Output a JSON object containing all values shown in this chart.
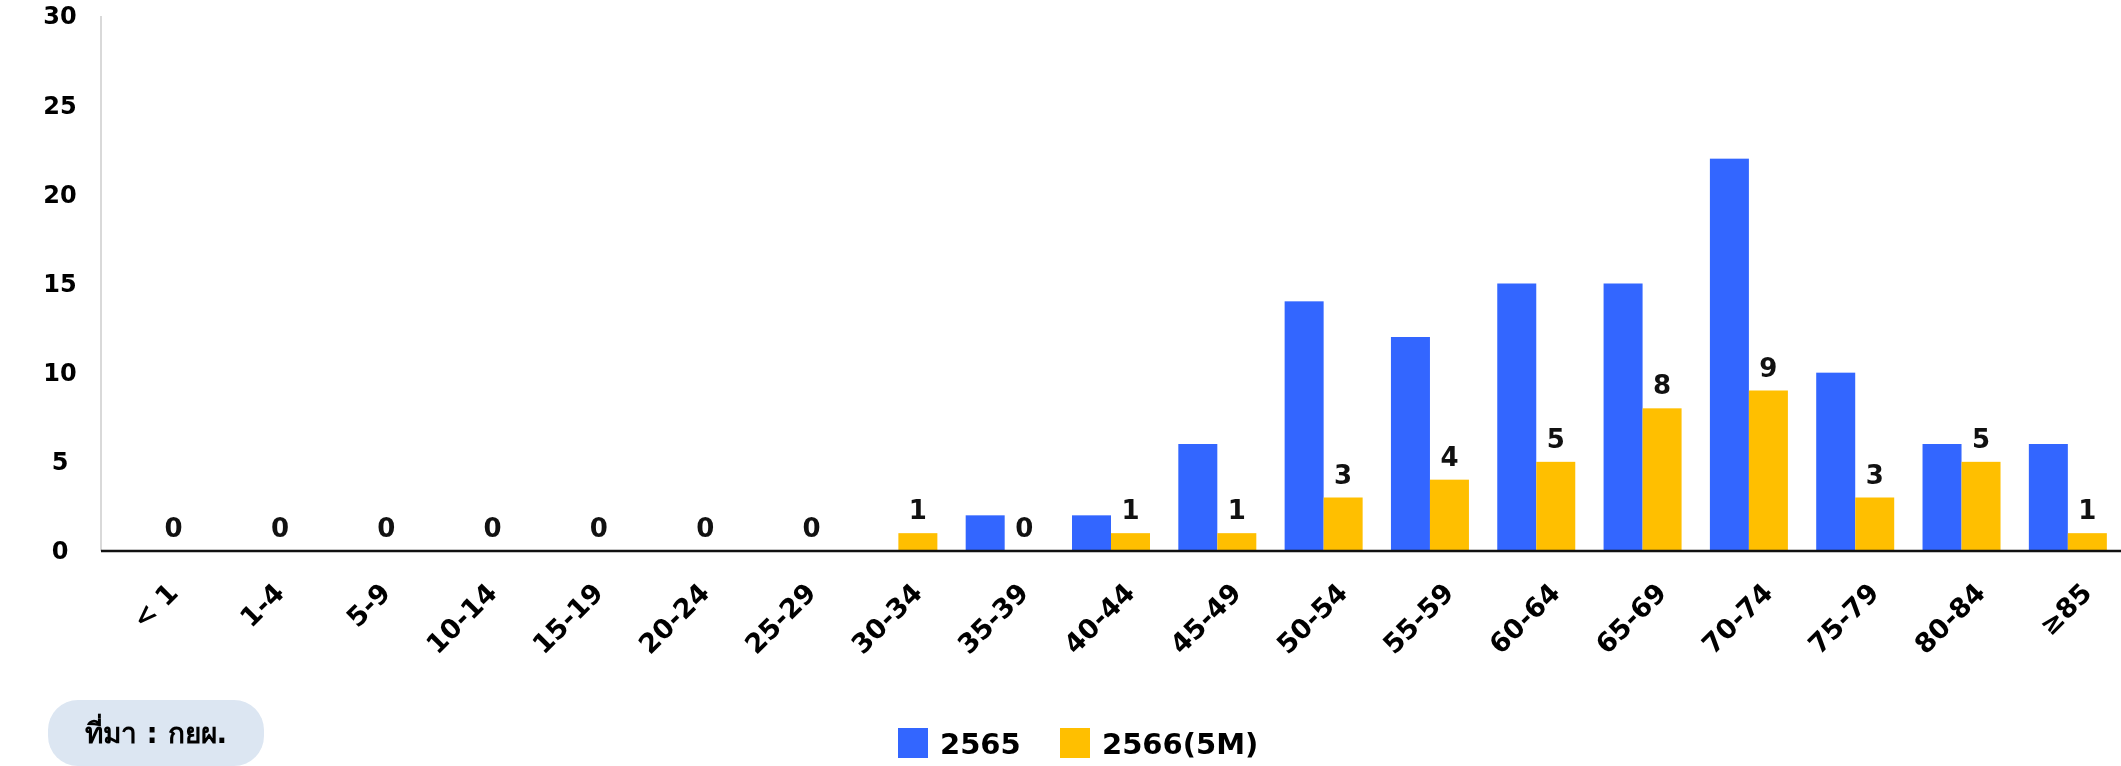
{
  "chart_data": {
    "type": "bar",
    "categories": [
      "< 1",
      "1-4",
      "5-9",
      "10-14",
      "15-19",
      "20-24",
      "25-29",
      "30-34",
      "35-39",
      "40-44",
      "45-49",
      "50-54",
      "55-59",
      "60-64",
      "65-69",
      "70-74",
      "75-79",
      "80-84",
      "≥85"
    ],
    "series": [
      {
        "name": "2565",
        "color": "#3366ff",
        "values": [
          0,
          0,
          0,
          0,
          0,
          0,
          0,
          0,
          2,
          2,
          6,
          14,
          12,
          15,
          15,
          22,
          10,
          6,
          6
        ]
      },
      {
        "name": "2566(5M)",
        "color": "#ffbf00",
        "values": [
          0,
          0,
          0,
          0,
          0,
          0,
          0,
          1,
          0,
          1,
          1,
          3,
          4,
          5,
          8,
          9,
          3,
          5,
          1
        ],
        "value_labels": [
          "0",
          "0",
          "0",
          "0",
          "0",
          "0",
          "0",
          "1",
          "0",
          "1",
          "1",
          "3",
          "4",
          "5",
          "8",
          "9",
          "3",
          "5",
          "1"
        ]
      }
    ],
    "ylim": [
      0,
      30
    ],
    "yticks": [
      0,
      5,
      10,
      15,
      20,
      25,
      30
    ],
    "grid": false,
    "legend": "bottom",
    "annotations": [
      "ที่มา : กยผ."
    ]
  }
}
